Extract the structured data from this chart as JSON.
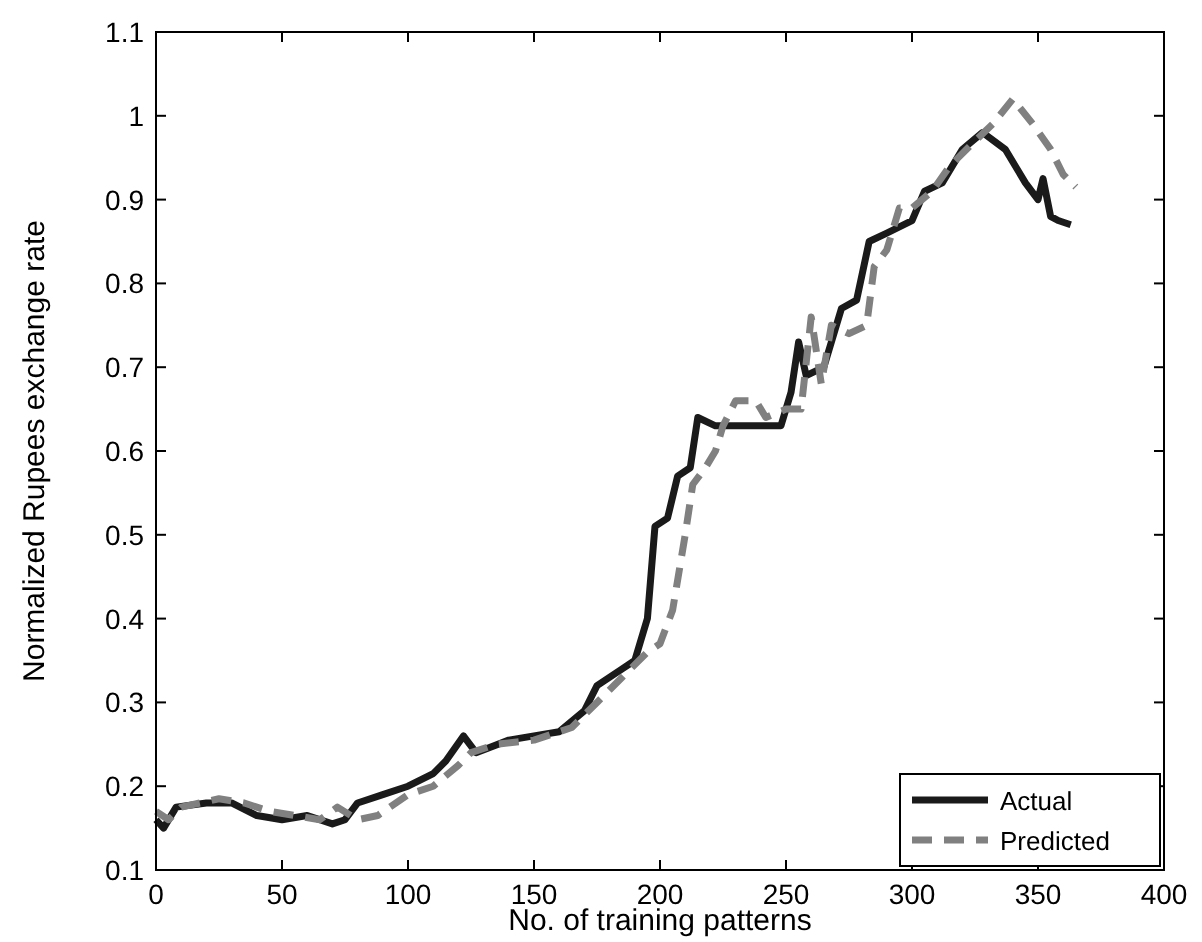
{
  "chart_data": {
    "type": "line",
    "xlabel": "No. of training patterns",
    "ylabel": "Normalized Rupees exchange rate",
    "xlim": [
      0,
      400
    ],
    "xticks": [
      0,
      50,
      100,
      150,
      200,
      250,
      300,
      350,
      400
    ],
    "ylim": [
      0.1,
      1.1
    ],
    "yticks": [
      0.1,
      0.2,
      0.3,
      0.4,
      0.5,
      0.6,
      0.7,
      0.8,
      0.9,
      1,
      1.1
    ],
    "legend": "bottom right",
    "grid": false,
    "series": [
      {
        "name": "Actual",
        "color": "#1a1a1a",
        "line_style": "solid",
        "x": [
          0,
          3,
          8,
          20,
          30,
          40,
          50,
          60,
          70,
          75,
          80,
          90,
          100,
          110,
          115,
          122,
          127,
          140,
          150,
          160,
          170,
          175,
          185,
          190,
          195,
          198,
          203,
          207,
          212,
          215,
          222,
          230,
          248,
          252,
          255,
          258,
          265,
          272,
          278,
          283,
          290,
          300,
          305,
          312,
          320,
          328,
          337,
          345,
          350,
          352,
          355,
          358,
          363
        ],
        "values": [
          0.16,
          0.15,
          0.175,
          0.18,
          0.18,
          0.165,
          0.16,
          0.165,
          0.155,
          0.16,
          0.18,
          0.19,
          0.2,
          0.215,
          0.23,
          0.26,
          0.24,
          0.255,
          0.26,
          0.265,
          0.29,
          0.32,
          0.34,
          0.35,
          0.4,
          0.51,
          0.52,
          0.57,
          0.58,
          0.64,
          0.63,
          0.63,
          0.63,
          0.67,
          0.73,
          0.69,
          0.7,
          0.77,
          0.78,
          0.85,
          0.86,
          0.875,
          0.91,
          0.92,
          0.96,
          0.98,
          0.96,
          0.92,
          0.9,
          0.925,
          0.88,
          0.875,
          0.87
        ]
      },
      {
        "name": "Predicted",
        "color": "#808080",
        "line_style": "dashed",
        "x": [
          0,
          5,
          10,
          25,
          35,
          45,
          55,
          65,
          72,
          80,
          88,
          100,
          110,
          120,
          125,
          135,
          150,
          165,
          175,
          185,
          195,
          200,
          205,
          210,
          213,
          218,
          222,
          225,
          230,
          238,
          242,
          250,
          256,
          260,
          264,
          268,
          275,
          282,
          285,
          290,
          295,
          300,
          308,
          315,
          325,
          332,
          340,
          348,
          355,
          360,
          365
        ],
        "values": [
          0.17,
          0.16,
          0.175,
          0.185,
          0.18,
          0.17,
          0.165,
          0.16,
          0.175,
          0.16,
          0.165,
          0.19,
          0.2,
          0.225,
          0.24,
          0.25,
          0.255,
          0.27,
          0.3,
          0.33,
          0.36,
          0.37,
          0.41,
          0.5,
          0.56,
          0.58,
          0.6,
          0.63,
          0.66,
          0.66,
          0.64,
          0.65,
          0.65,
          0.76,
          0.68,
          0.75,
          0.74,
          0.75,
          0.82,
          0.84,
          0.89,
          0.89,
          0.91,
          0.94,
          0.97,
          0.99,
          1.02,
          0.99,
          0.96,
          0.93,
          0.915
        ]
      }
    ]
  }
}
